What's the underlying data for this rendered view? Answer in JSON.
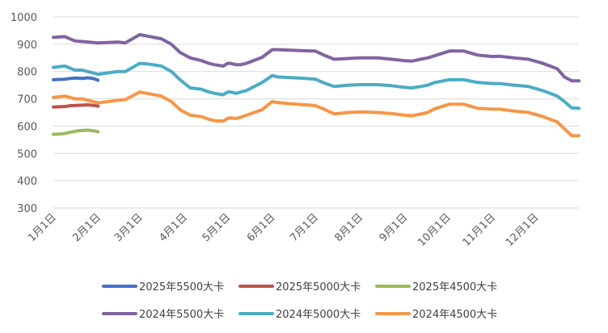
{
  "chart_data": {
    "type": "line",
    "title": "",
    "xlabel": "",
    "ylabel": "",
    "ylim": [
      300,
      1000
    ],
    "yticks": [
      300,
      400,
      500,
      600,
      700,
      800,
      900,
      1000
    ],
    "xlim": [
      0,
      365
    ],
    "xticks": [
      {
        "label": "1月1日",
        "day": 0
      },
      {
        "label": "2月1日",
        "day": 31
      },
      {
        "label": "3月1日",
        "day": 60
      },
      {
        "label": "4月1日",
        "day": 91
      },
      {
        "label": "5月1日",
        "day": 121
      },
      {
        "label": "6月1日",
        "day": 152
      },
      {
        "label": "7月1日",
        "day": 182
      },
      {
        "label": "8月1日",
        "day": 213
      },
      {
        "label": "9月1日",
        "day": 244
      },
      {
        "label": "10月1日",
        "day": 274
      },
      {
        "label": "11月1日",
        "day": 305
      },
      {
        "label": "12月1日",
        "day": 335
      }
    ],
    "grid": "horizontal",
    "legend_position": "bottom",
    "series": [
      {
        "name": "2025年5500大卡",
        "color": "#4472C4",
        "x": [
          0,
          4,
          8,
          12,
          16,
          20,
          24,
          28,
          31
        ],
        "y": [
          770,
          771,
          772,
          775,
          776,
          775,
          777,
          774,
          768
        ]
      },
      {
        "name": "2025年5000大卡",
        "color": "#C0504D",
        "x": [
          0,
          4,
          8,
          12,
          16,
          20,
          24,
          28,
          31
        ],
        "y": [
          670,
          671,
          672,
          675,
          676,
          677,
          678,
          676,
          673
        ]
      },
      {
        "name": "2025年4500大卡",
        "color": "#9BBB59",
        "x": [
          0,
          4,
          8,
          12,
          16,
          20,
          24,
          28,
          31
        ],
        "y": [
          570,
          571,
          573,
          578,
          582,
          584,
          585,
          583,
          579
        ]
      },
      {
        "name": "2024年5500大卡",
        "color": "#8064A2",
        "x": [
          0,
          8,
          15,
          20,
          31,
          45,
          50,
          60,
          65,
          75,
          82,
          88,
          95,
          103,
          108,
          112,
          118,
          121,
          123,
          127,
          130,
          134,
          145,
          152,
          156,
          165,
          175,
          182,
          188,
          195,
          205,
          213,
          225,
          235,
          244,
          249,
          255,
          260,
          265,
          275,
          285,
          295,
          305,
          310,
          320,
          330,
          340,
          350,
          355,
          360,
          365
        ],
        "y": [
          925,
          928,
          912,
          910,
          905,
          908,
          905,
          935,
          930,
          920,
          900,
          870,
          850,
          840,
          830,
          825,
          820,
          830,
          830,
          825,
          825,
          830,
          852,
          880,
          880,
          878,
          876,
          875,
          860,
          845,
          848,
          850,
          850,
          845,
          840,
          838,
          845,
          850,
          858,
          875,
          875,
          860,
          855,
          856,
          850,
          845,
          830,
          810,
          780,
          766,
          766
        ]
      },
      {
        "name": "2024年5000大卡",
        "color": "#4BACC6",
        "x": [
          0,
          8,
          15,
          20,
          31,
          45,
          50,
          60,
          65,
          75,
          82,
          88,
          95,
          103,
          108,
          112,
          118,
          121,
          123,
          127,
          130,
          134,
          145,
          152,
          156,
          165,
          175,
          182,
          188,
          195,
          205,
          213,
          225,
          235,
          244,
          249,
          255,
          260,
          265,
          275,
          285,
          295,
          305,
          310,
          320,
          330,
          340,
          350,
          355,
          360,
          365
        ],
        "y": [
          815,
          820,
          805,
          805,
          790,
          800,
          800,
          830,
          828,
          820,
          800,
          770,
          740,
          735,
          725,
          720,
          715,
          725,
          725,
          720,
          725,
          730,
          760,
          785,
          780,
          778,
          775,
          772,
          758,
          745,
          750,
          752,
          752,
          748,
          742,
          740,
          745,
          750,
          760,
          770,
          770,
          760,
          756,
          756,
          750,
          745,
          730,
          710,
          690,
          667,
          665
        ]
      },
      {
        "name": "2024年4500大卡",
        "color": "#F79646",
        "x": [
          0,
          8,
          15,
          20,
          31,
          45,
          50,
          60,
          65,
          75,
          82,
          88,
          95,
          103,
          108,
          112,
          118,
          121,
          123,
          127,
          130,
          134,
          145,
          152,
          156,
          165,
          175,
          182,
          188,
          195,
          205,
          213,
          225,
          235,
          244,
          249,
          255,
          260,
          265,
          275,
          285,
          295,
          305,
          310,
          320,
          330,
          340,
          350,
          355,
          360,
          365
        ],
        "y": [
          705,
          710,
          700,
          700,
          685,
          695,
          697,
          725,
          720,
          710,
          690,
          660,
          640,
          635,
          625,
          620,
          618,
          628,
          630,
          628,
          632,
          640,
          660,
          690,
          686,
          682,
          678,
          675,
          662,
          645,
          650,
          652,
          650,
          646,
          640,
          638,
          644,
          650,
          664,
          680,
          680,
          665,
          662,
          662,
          655,
          650,
          635,
          615,
          590,
          565,
          565
        ]
      }
    ]
  }
}
